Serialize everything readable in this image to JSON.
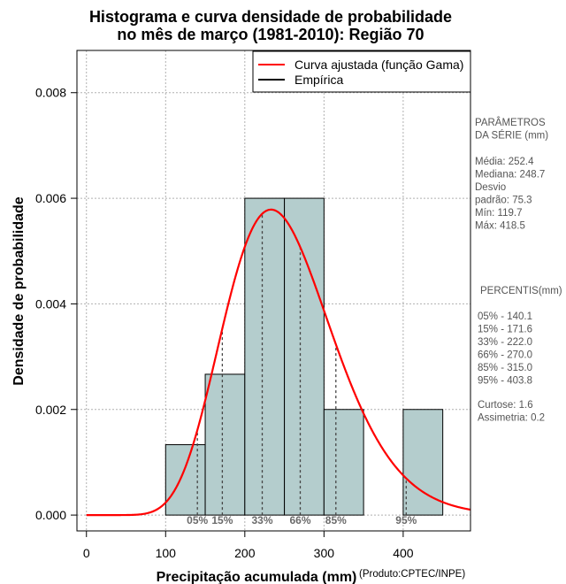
{
  "chart_data": {
    "type": "bar",
    "title": [
      "Histograma e curva densidade de probabilidade",
      "no mês de março (1981-2010): Região 70"
    ],
    "xlabel": "Precipitação acumulada (mm)",
    "ylabel": "Densidade de probabilidade",
    "credit": "(Produto:CPTEC/INPE)",
    "xlim": [
      -12,
      485
    ],
    "ylim": [
      -0.0003,
      0.0088
    ],
    "x_ticks": [
      0,
      100,
      200,
      300,
      400
    ],
    "y_ticks": [
      0.0,
      0.002,
      0.004,
      0.006,
      0.008
    ],
    "y_tick_labels": [
      "0.000",
      "0.002",
      "0.004",
      "0.006",
      "0.008"
    ],
    "grid": true,
    "histogram": {
      "bins": [
        {
          "x0": 100,
          "x1": 150,
          "density": 0.001333
        },
        {
          "x0": 150,
          "x1": 200,
          "density": 0.002667
        },
        {
          "x0": 200,
          "x1": 250,
          "density": 0.006
        },
        {
          "x0": 250,
          "x1": 300,
          "density": 0.006
        },
        {
          "x0": 300,
          "x1": 350,
          "density": 0.002
        },
        {
          "x0": 350,
          "x1": 400,
          "density": 0.0
        },
        {
          "x0": 400,
          "x1": 450,
          "density": 0.002
        }
      ],
      "fill": "#b4cdcd",
      "edge": "#000000"
    },
    "fitted_curve": {
      "name": "Curva ajustada (função Gama)",
      "color": "#ff0000",
      "shape": 12.6,
      "scale": 20.1,
      "x_range": [
        0,
        485
      ]
    },
    "percentile_markers": [
      {
        "label": "05%",
        "x": 140.1
      },
      {
        "label": "15%",
        "x": 171.6
      },
      {
        "label": "33%",
        "x": 222.0
      },
      {
        "label": "66%",
        "x": 270.0
      },
      {
        "label": "85%",
        "x": 315.0
      },
      {
        "label": "95%",
        "x": 403.8
      }
    ],
    "legend": {
      "position": "top-right",
      "entries": [
        {
          "label": "Curva ajustada (função Gama)",
          "color": "#ff0000"
        },
        {
          "label": "Empírica",
          "color": "#000000"
        }
      ]
    },
    "side_panel": {
      "params_title": [
        "PARÂMETROS",
        "DA SÉRIE (mm)"
      ],
      "params": [
        "Média:  252.4",
        "Mediana:  248.7",
        "Desvio",
        "padrão:  75.3",
        "Mín:  119.7",
        "Máx:  418.5"
      ],
      "percentis_title": "PERCENTIS(mm)",
      "percentis": [
        "05% -  140.1",
        "15% -  171.6",
        "33% -  222.0",
        "66% -  270.0",
        "85% -  315.0",
        "95% -  403.8"
      ],
      "extra": [
        "Curtose:  1.6",
        "Assimetria:  0.2"
      ]
    }
  }
}
